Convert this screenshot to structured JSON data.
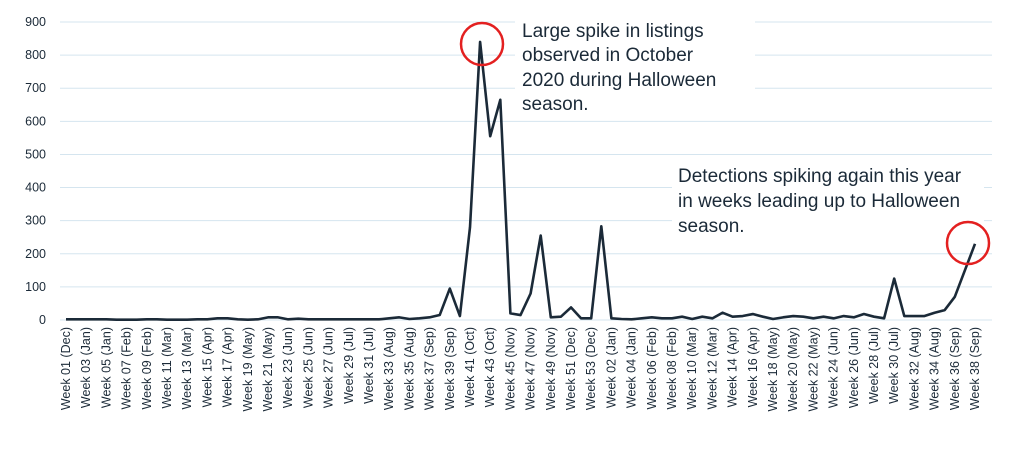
{
  "chart_data": {
    "type": "line",
    "categories": [
      "Week 01 (Dec)",
      null,
      "Week 03 (Jan)",
      null,
      "Week 05 (Jan)",
      null,
      "Week 07 (Feb)",
      null,
      "Week 09 (Feb)",
      null,
      "Week 11 (Mar)",
      null,
      "Week 13 (Mar)",
      null,
      "Week 15 (Apr)",
      null,
      "Week 17 (Apr)",
      null,
      "Week 19 (May)",
      null,
      "Week 21 (May)",
      null,
      "Week 23 (Jun)",
      null,
      "Week 25 (Jun)",
      null,
      "Week 27 (Jun)",
      null,
      "Week 29 (Jul)",
      null,
      "Week 31 (Jul)",
      null,
      "Week 33 (Aug)",
      null,
      "Week 35 (Aug)",
      null,
      "Week 37 (Sep)",
      null,
      "Week 39 (Sep)",
      null,
      "Week 41 (Oct)",
      null,
      "Week 43 (Oct)",
      null,
      "Week 45 (Nov)",
      null,
      "Week 47 (Nov)",
      null,
      "Week 49 (Nov)",
      null,
      "Week 51 (Dec)",
      null,
      "Week 53 (Dec)",
      null,
      "Week 02 (Jan)",
      null,
      "Week 04 (Jan)",
      null,
      "Week 06 (Feb)",
      null,
      "Week 08 (Feb)",
      null,
      "Week 10 (Mar)",
      null,
      "Week 12 (Mar)",
      null,
      "Week 14 (Apr)",
      null,
      "Week 16 (Apr)",
      null,
      "Week 18 (May)",
      null,
      "Week 20 (May)",
      null,
      "Week 22 (May)",
      null,
      "Week 24 (Jun)",
      null,
      "Week 26 (Jun)",
      null,
      "Week 28 (Jul)",
      null,
      "Week 30 (Jul)",
      null,
      "Week 32 (Aug)",
      null,
      "Week 34 (Aug)",
      null,
      "Week 36 (Sep)",
      null,
      "Week 38 (Sep)"
    ],
    "values": [
      2,
      2,
      2,
      2,
      2,
      1,
      1,
      1,
      2,
      2,
      1,
      1,
      1,
      2,
      2,
      5,
      5,
      2,
      1,
      2,
      8,
      8,
      2,
      4,
      2,
      2,
      2,
      2,
      2,
      2,
      2,
      2,
      5,
      8,
      3,
      5,
      8,
      15,
      95,
      12,
      280,
      840,
      555,
      665,
      20,
      15,
      80,
      255,
      8,
      10,
      38,
      5,
      5,
      283,
      5,
      3,
      2,
      5,
      8,
      5,
      5,
      10,
      3,
      10,
      5,
      22,
      10,
      12,
      18,
      10,
      3,
      8,
      12,
      10,
      5,
      10,
      5,
      12,
      8,
      18,
      10,
      5,
      125,
      12,
      12,
      12,
      22,
      30,
      70,
      150,
      230
    ],
    "color": "#1b2a38",
    "ylim": [
      0,
      900
    ],
    "yticks": [
      0,
      100,
      200,
      300,
      400,
      500,
      600,
      700,
      800,
      900
    ],
    "grid": true,
    "annotations": [
      {
        "lines": [
          "Large spike in listings",
          "observed in October",
          "2020 during Halloween",
          "season."
        ]
      },
      {
        "lines": [
          "Detections spiking again this year",
          "in weeks leading up to Halloween",
          "season."
        ]
      }
    ]
  }
}
